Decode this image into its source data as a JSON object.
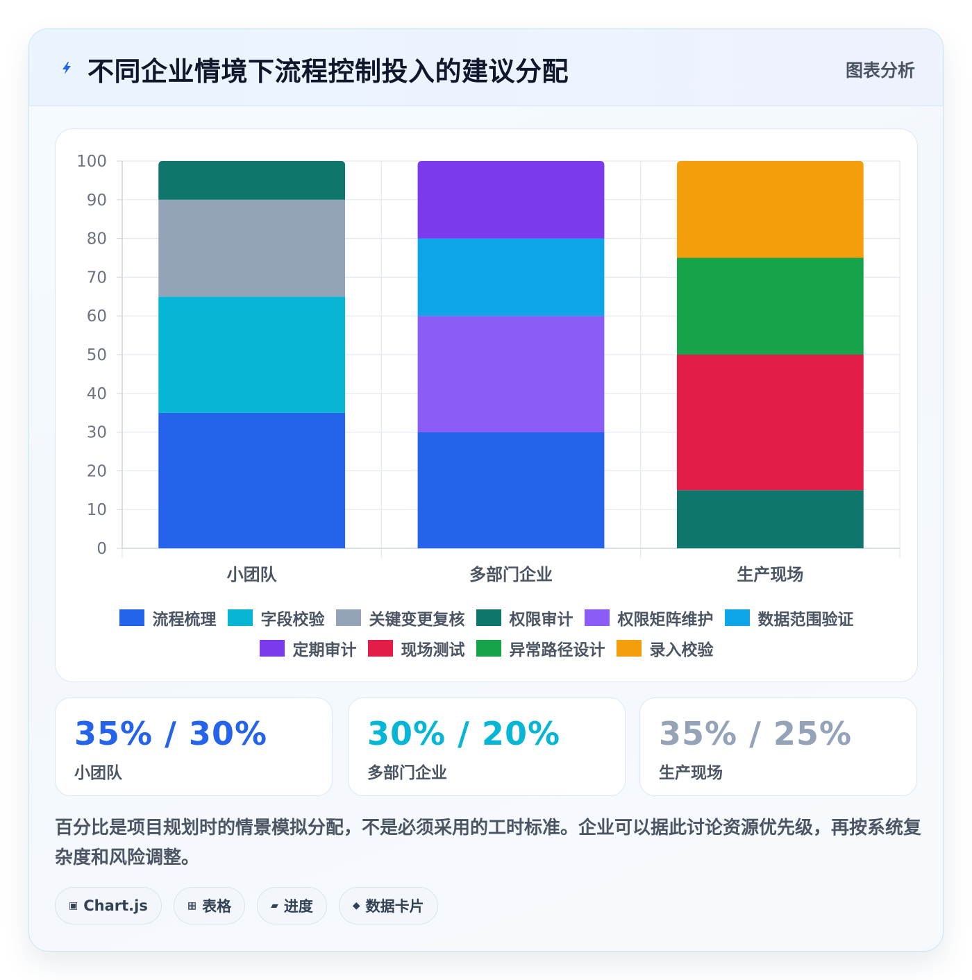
{
  "header": {
    "title": "不同企业情境下流程控制投入的建议分配",
    "tag": "图表分析"
  },
  "chart_data": {
    "type": "bar",
    "stacked": true,
    "ylim": [
      0,
      100
    ],
    "yticks": [
      0,
      10,
      20,
      30,
      40,
      50,
      60,
      70,
      80,
      90,
      100
    ],
    "categories": [
      "小团队",
      "多部门企业",
      "生产现场"
    ],
    "legend_position": "bottom",
    "grid": true,
    "series": [
      {
        "name": "流程梳理",
        "color": "#2563eb",
        "values": [
          35,
          30,
          0
        ]
      },
      {
        "name": "字段校验",
        "color": "#06b6d4",
        "values": [
          30,
          0,
          0
        ]
      },
      {
        "name": "关键变更复核",
        "color": "#94a3b8",
        "values": [
          25,
          0,
          0
        ]
      },
      {
        "name": "权限审计",
        "color": "#0f766e",
        "values": [
          10,
          0,
          15
        ]
      },
      {
        "name": "权限矩阵维护",
        "color": "#8b5cf6",
        "values": [
          0,
          30,
          0
        ]
      },
      {
        "name": "数据范围验证",
        "color": "#0ea5e9",
        "values": [
          0,
          20,
          0
        ]
      },
      {
        "name": "定期审计",
        "color": "#7c3aed",
        "values": [
          0,
          20,
          0
        ]
      },
      {
        "name": "现场测试",
        "color": "#e11d48",
        "values": [
          0,
          0,
          35
        ]
      },
      {
        "name": "异常路径设计",
        "color": "#16a34a",
        "values": [
          0,
          0,
          25
        ]
      },
      {
        "name": "录入校验",
        "color": "#f59e0b",
        "values": [
          0,
          0,
          25
        ]
      }
    ]
  },
  "stats": [
    {
      "value": "35% / 30%",
      "label": "小团队",
      "color": "#2563eb"
    },
    {
      "value": "30% / 20%",
      "label": "多部门企业",
      "color": "#06b6d4"
    },
    {
      "value": "35% / 25%",
      "label": "生产现场",
      "color": "#94a3b8"
    }
  ],
  "note": "百分比是项目规划时的情景模拟分配，不是必须采用的工时标准。企业可以据此讨论资源优先级，再按系统复杂度和风险调整。",
  "pills": [
    {
      "icon": "▣",
      "icon_name": "chart-icon",
      "label": "Chart.js"
    },
    {
      "icon": "▦",
      "icon_name": "table-icon",
      "label": "表格"
    },
    {
      "icon": "▰",
      "icon_name": "progress-icon",
      "label": "进度"
    },
    {
      "icon": "◆",
      "icon_name": "diamond-icon",
      "label": "数据卡片"
    }
  ]
}
